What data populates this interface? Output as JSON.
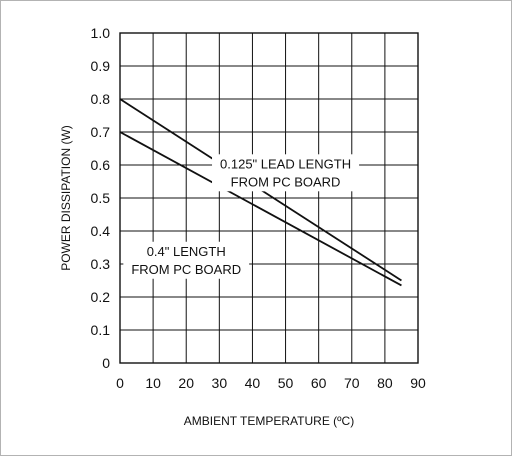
{
  "chart_data": {
    "type": "line",
    "xlabel": "AMBIENT TEMPERATURE (ºC)",
    "ylabel": "POWER DISSIPATION (W)",
    "xlim": [
      0,
      90
    ],
    "ylim": [
      0,
      1.0
    ],
    "x_ticks": [
      "0",
      "10",
      "20",
      "30",
      "40",
      "50",
      "60",
      "70",
      "80",
      "90"
    ],
    "y_ticks": [
      "0",
      "0.1",
      "0.2",
      "0.3",
      "0.4",
      "0.5",
      "0.6",
      "0.7",
      "0.8",
      "0.9",
      "1.0"
    ],
    "grid": true,
    "series": [
      {
        "x": [
          0,
          85
        ],
        "y": [
          0.8,
          0.25
        ]
      },
      {
        "x": [
          0,
          85
        ],
        "y": [
          0.7,
          0.235
        ]
      }
    ],
    "annotations": [
      {
        "lines": [
          "0.125\" LEAD LENGTH",
          "FROM PC BOARD"
        ],
        "x": 50,
        "y": 0.59
      },
      {
        "lines": [
          "0.4\" LENGTH",
          "FROM PC BOARD"
        ],
        "x": 20,
        "y": 0.325
      }
    ]
  }
}
